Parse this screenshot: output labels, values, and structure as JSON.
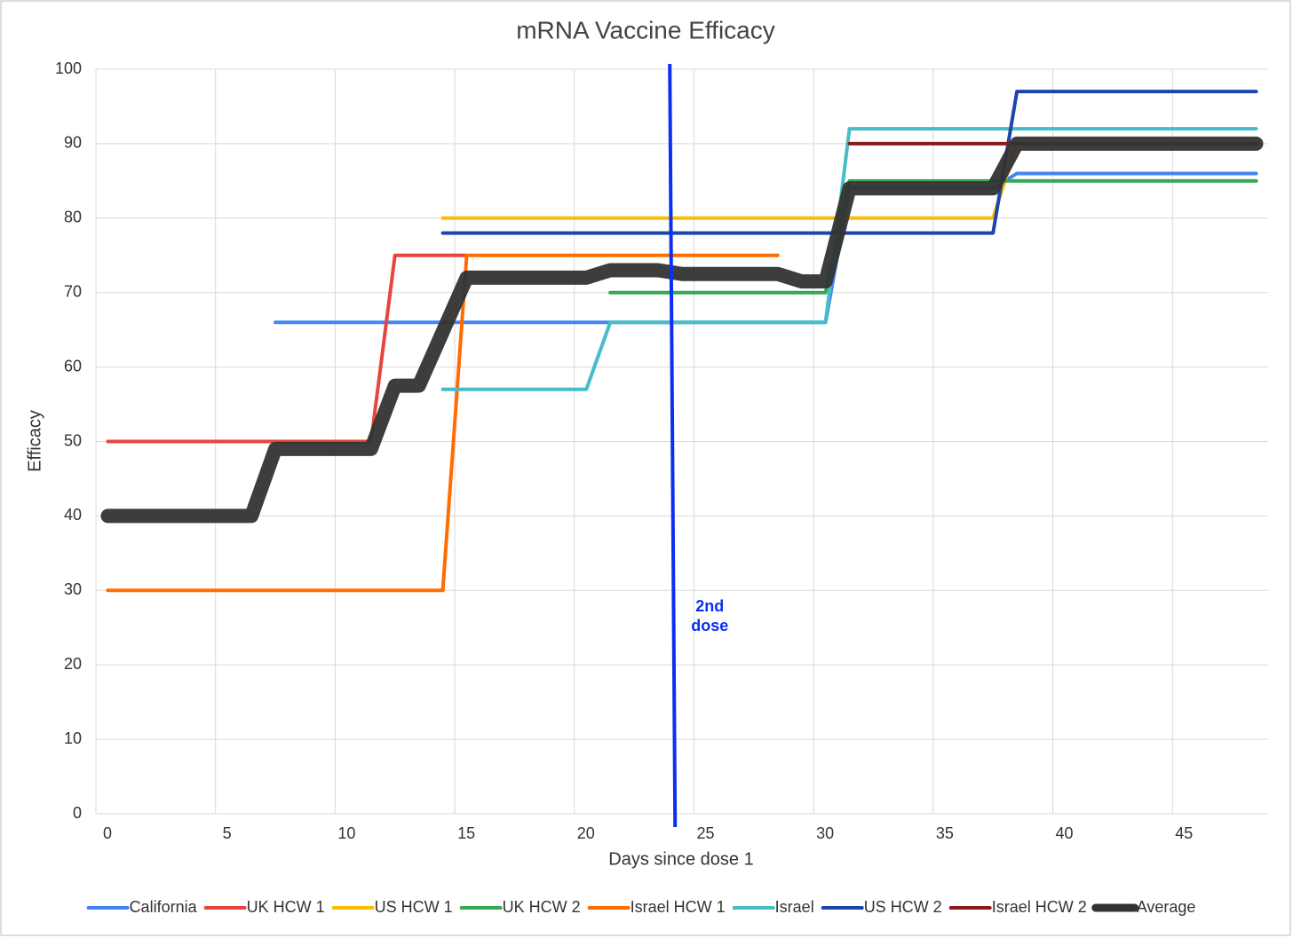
{
  "chart_data": {
    "type": "line",
    "title": "mRNA Vaccine Efficacy",
    "x_label": "Days since dose 1",
    "y_label": "Efficacy",
    "xlim": [
      0,
      49
    ],
    "xticks": [
      0,
      5,
      10,
      15,
      20,
      25,
      30,
      35,
      40,
      45
    ],
    "ylim": [
      0,
      100
    ],
    "yticks": [
      0,
      10,
      20,
      30,
      40,
      50,
      60,
      70,
      80,
      90,
      100
    ],
    "grid": true,
    "legend": "bottom",
    "annotation": {
      "text": "2nd dose",
      "x": 24.1,
      "color": "#0a2ff0"
    },
    "series": [
      {
        "name": "California",
        "color": "#4285f4",
        "width": 4,
        "x": [
          7.5,
          30.5,
          31.5,
          37.5,
          38.5,
          48.5
        ],
        "values": [
          66,
          66,
          84,
          84,
          86,
          86
        ]
      },
      {
        "name": "UK HCW 1",
        "color": "#e8453c",
        "width": 4,
        "x": [
          0.5,
          11.5,
          12.5,
          15.5
        ],
        "values": [
          50,
          50,
          75,
          75
        ]
      },
      {
        "name": "US HCW 1",
        "color": "#fbbc04",
        "width": 4,
        "x": [
          14.5,
          37.5,
          38.5,
          48.5
        ],
        "values": [
          80,
          80,
          90,
          90
        ]
      },
      {
        "name": "UK HCW 2",
        "color": "#34a853",
        "width": 4,
        "x": [
          21.5,
          30.5,
          31.5,
          48.5
        ],
        "values": [
          70,
          70,
          85,
          85
        ]
      },
      {
        "name": "Israel HCW 1",
        "color": "#ff6d01",
        "width": 4,
        "x": [
          0.5,
          14.5,
          15.5,
          28.5
        ],
        "values": [
          30,
          30,
          75,
          75
        ]
      },
      {
        "name": "Israel",
        "color": "#46bdc6",
        "width": 4,
        "x": [
          14.5,
          20.5,
          21.5,
          30.5,
          31.5,
          48.5
        ],
        "values": [
          57,
          57,
          66,
          66,
          92,
          92
        ]
      },
      {
        "name": "US HCW 2",
        "color": "#1a47a8",
        "width": 4,
        "x": [
          14.5,
          37.5,
          38.5,
          48.5
        ],
        "values": [
          78,
          78,
          97,
          97
        ]
      },
      {
        "name": "Israel HCW 2",
        "color": "#8b1a1a",
        "width": 4,
        "x": [
          31.5,
          48.5
        ],
        "values": [
          90,
          90
        ]
      },
      {
        "name": "Average",
        "color": "#333333",
        "width": 16,
        "x": [
          0.5,
          6.5,
          7.5,
          11.5,
          12.5,
          13.5,
          15.5,
          20.5,
          21.5,
          23.5,
          24.5,
          28.5,
          29.5,
          30.5,
          31.5,
          37.5,
          38.5,
          48.5
        ],
        "values": [
          40,
          40,
          49,
          49,
          57.5,
          57.5,
          72,
          72,
          73,
          73,
          72.5,
          72.5,
          71.5,
          71.5,
          84,
          84,
          90,
          90
        ]
      }
    ]
  }
}
